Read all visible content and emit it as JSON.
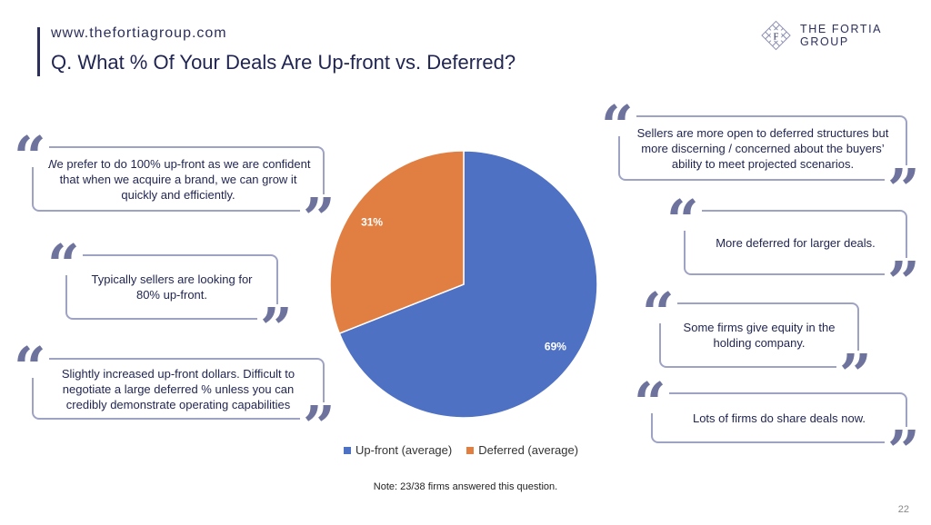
{
  "header": {
    "url": "www.thefortiagroup.com",
    "title": "Q. What % Of Your Deals Are Up-front vs. Deferred?",
    "logo_letter": "F",
    "logo_text": "THE FORTIA GROUP"
  },
  "quotes": {
    "left": [
      "We prefer to do 100% up-front as we are confident that when we acquire a brand, we can grow it quickly and efficiently.",
      "Typically sellers are looking for 80% up-front.",
      "Slightly increased up-front dollars. Difficult to negotiate a large deferred % unless you can credibly demonstrate operating capabilities"
    ],
    "right": [
      "Sellers are more open to deferred structures but more discerning / concerned about the buyers’ ability to meet projected scenarios.",
      "More deferred for larger deals.",
      "Some firms give equity in the holding company.",
      "Lots of firms do share deals now."
    ]
  },
  "chart_data": {
    "type": "pie",
    "categories": [
      "Up-front (average)",
      "Deferred (average)"
    ],
    "values": [
      69,
      31
    ],
    "data_labels": [
      "69%",
      "31%"
    ],
    "colors": [
      "#4f71c3",
      "#e07f41"
    ],
    "legend": "bottom"
  },
  "note": "Note: 23/38 firms answered this question.",
  "page_number": "22",
  "colors": {
    "navy": "#2b2f5a",
    "border": "#9ea3c4",
    "quote_mark": "#6d739c"
  }
}
